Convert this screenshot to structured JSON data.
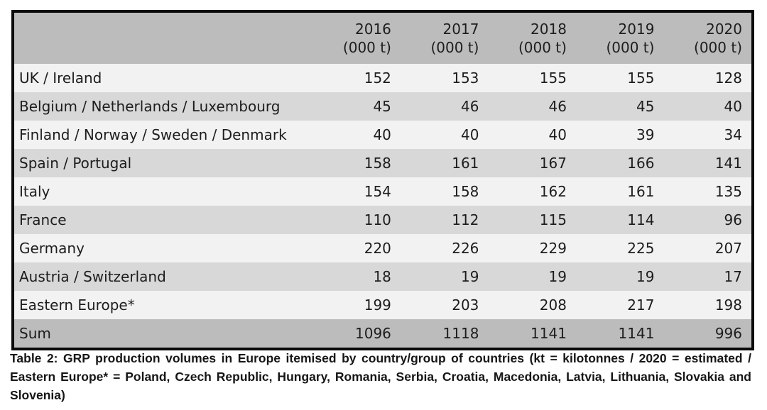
{
  "chart_data": {
    "type": "table",
    "years": [
      "2016",
      "2017",
      "2018",
      "2019",
      "2020"
    ],
    "unit_label": "(000 t)",
    "rows": [
      {
        "label": "UK / Ireland",
        "values": [
          152,
          153,
          155,
          155,
          128
        ]
      },
      {
        "label": "Belgium / Netherlands / Luxembourg",
        "values": [
          45,
          46,
          46,
          45,
          40
        ]
      },
      {
        "label": "Finland / Norway / Sweden / Denmark",
        "values": [
          40,
          40,
          40,
          39,
          34
        ]
      },
      {
        "label": "Spain / Portugal",
        "values": [
          158,
          161,
          167,
          166,
          141
        ]
      },
      {
        "label": "Italy",
        "values": [
          154,
          158,
          162,
          161,
          135
        ]
      },
      {
        "label": "France",
        "values": [
          110,
          112,
          115,
          114,
          96
        ]
      },
      {
        "label": "Germany",
        "values": [
          220,
          226,
          229,
          225,
          207
        ]
      },
      {
        "label": "Austria / Switzerland",
        "values": [
          18,
          19,
          19,
          19,
          17
        ]
      },
      {
        "label": "Eastern Europe*",
        "values": [
          199,
          203,
          208,
          217,
          198
        ]
      },
      {
        "label": "Sum",
        "values": [
          1096,
          1118,
          1141,
          1141,
          996
        ],
        "is_sum": true
      }
    ],
    "caption": "Table 2: GRP production volumes in Europe itemised by country/group of countries (kt = kilotonnes / 2020 = estimated / Eastern Europe* = Poland, Czech Republic, Hungary, Romania, Serbia, Croatia, Macedonia, Latvia, Lithuania, Slovakia and Slovenia)"
  },
  "colors": {
    "header_bg": "#bcbcbc",
    "row_light": "#f2f2f2",
    "row_dark": "#d8d8d8",
    "sum_bg": "#bcbcbc",
    "border": "#0a0a0a"
  }
}
